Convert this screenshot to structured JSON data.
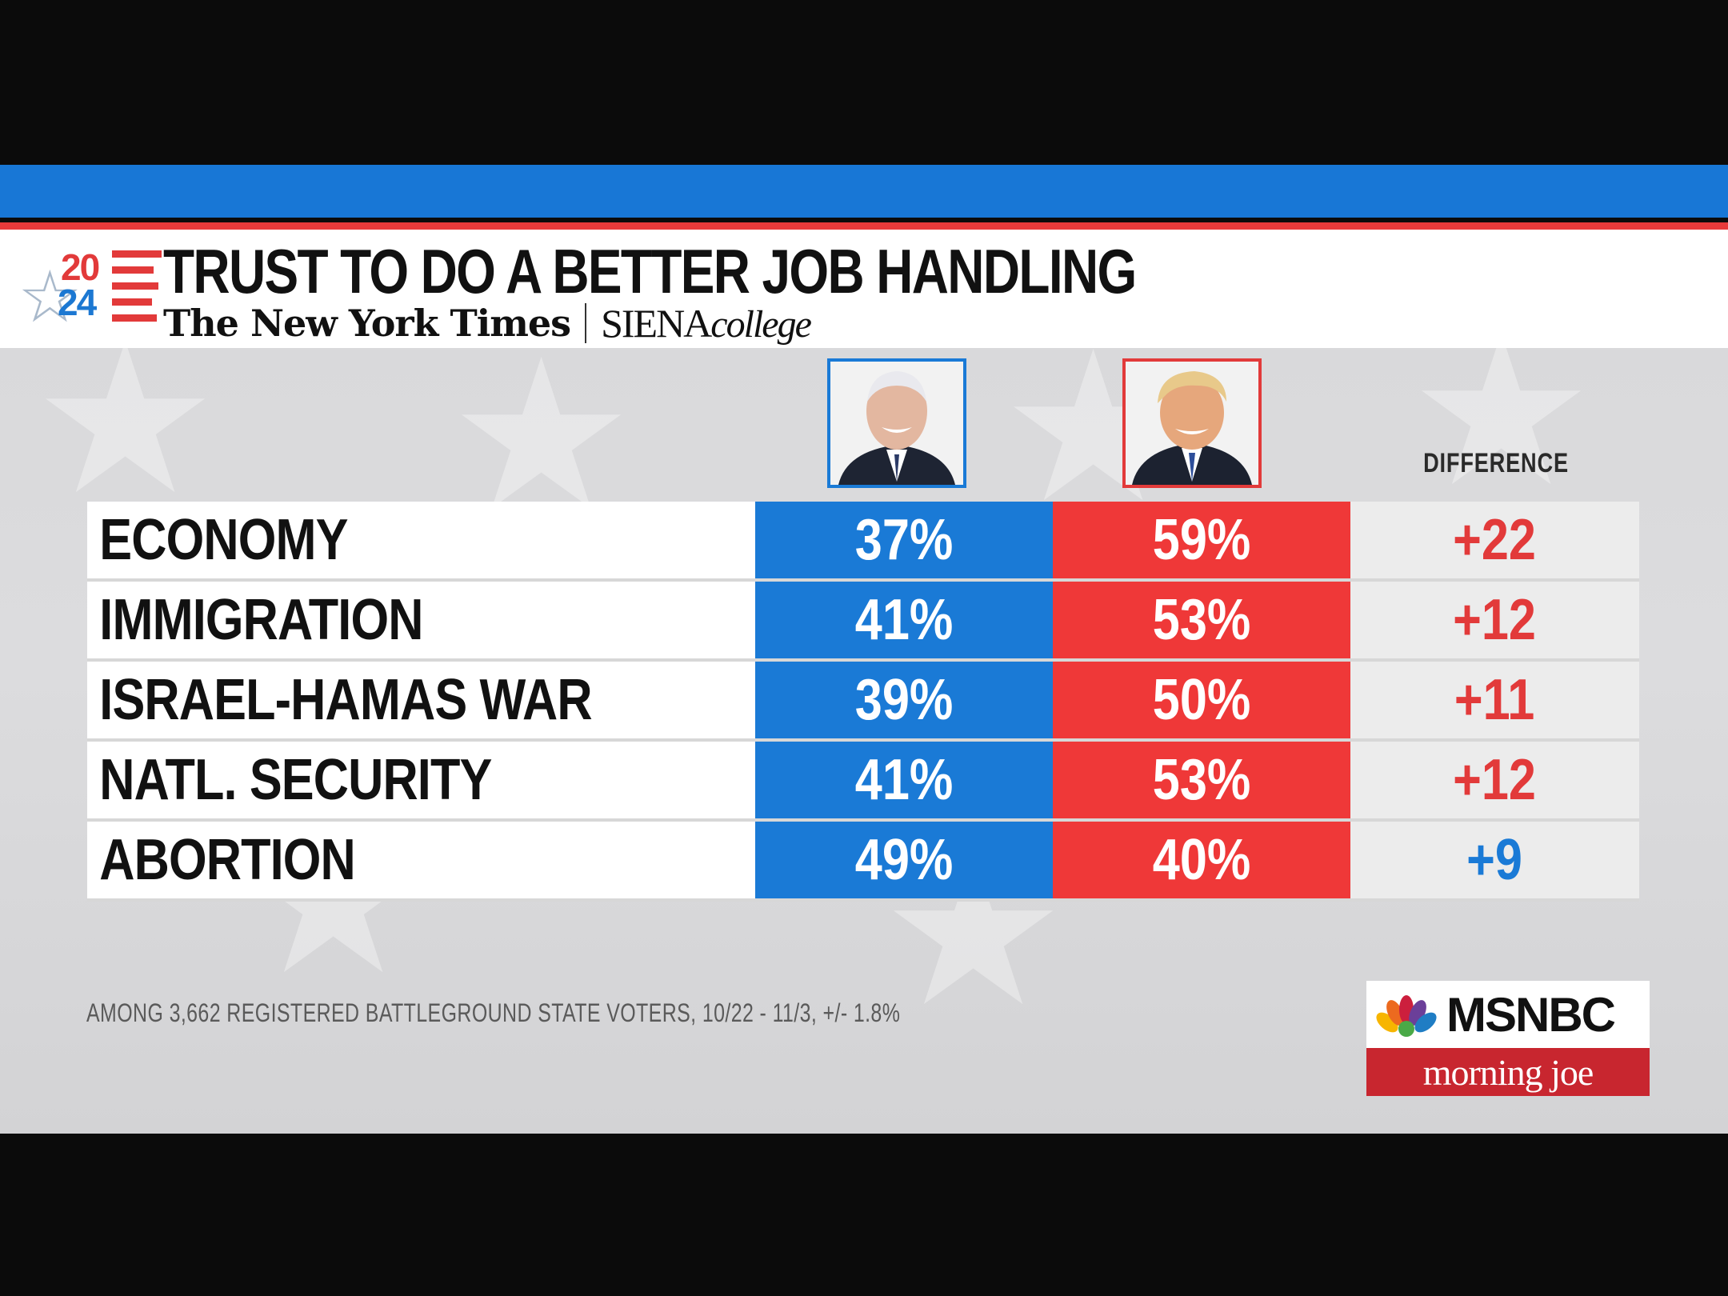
{
  "header": {
    "logo_year_top": "20",
    "logo_year_bottom": "24",
    "title": "TRUST TO DO A BETTER JOB HANDLING",
    "source_nyt": "The New York Times",
    "source_siena_main": "SIENA",
    "source_siena_sub": "college"
  },
  "columns": {
    "difference_label": "DIFFERENCE"
  },
  "colors": {
    "biden": "#1a7ad6",
    "trump": "#ef3838",
    "red_text": "#e23a3a",
    "blue_text": "#1a7ad6"
  },
  "chart_data": {
    "type": "table",
    "title": "TRUST TO DO A BETTER JOB HANDLING",
    "columns": [
      "Biden",
      "Trump",
      "DIFFERENCE"
    ],
    "rows": [
      {
        "issue": "ECONOMY",
        "biden": "37%",
        "trump": "59%",
        "difference": "+22",
        "leader": "trump"
      },
      {
        "issue": "IMMIGRATION",
        "biden": "41%",
        "trump": "53%",
        "difference": "+12",
        "leader": "trump"
      },
      {
        "issue": "ISRAEL-HAMAS WAR",
        "biden": "39%",
        "trump": "50%",
        "difference": "+11",
        "leader": "trump"
      },
      {
        "issue": "NATL. SECURITY",
        "biden": "41%",
        "trump": "53%",
        "difference": "+12",
        "leader": "trump"
      },
      {
        "issue": "ABORTION",
        "biden": "49%",
        "trump": "40%",
        "difference": "+9",
        "leader": "biden"
      }
    ]
  },
  "footnote": "AMONG 3,662 REGISTERED BATTLEGROUND STATE VOTERS, 10/22 - 11/3, +/- 1.8%",
  "network": {
    "brand": "MSNBC",
    "show": "morning joe"
  }
}
